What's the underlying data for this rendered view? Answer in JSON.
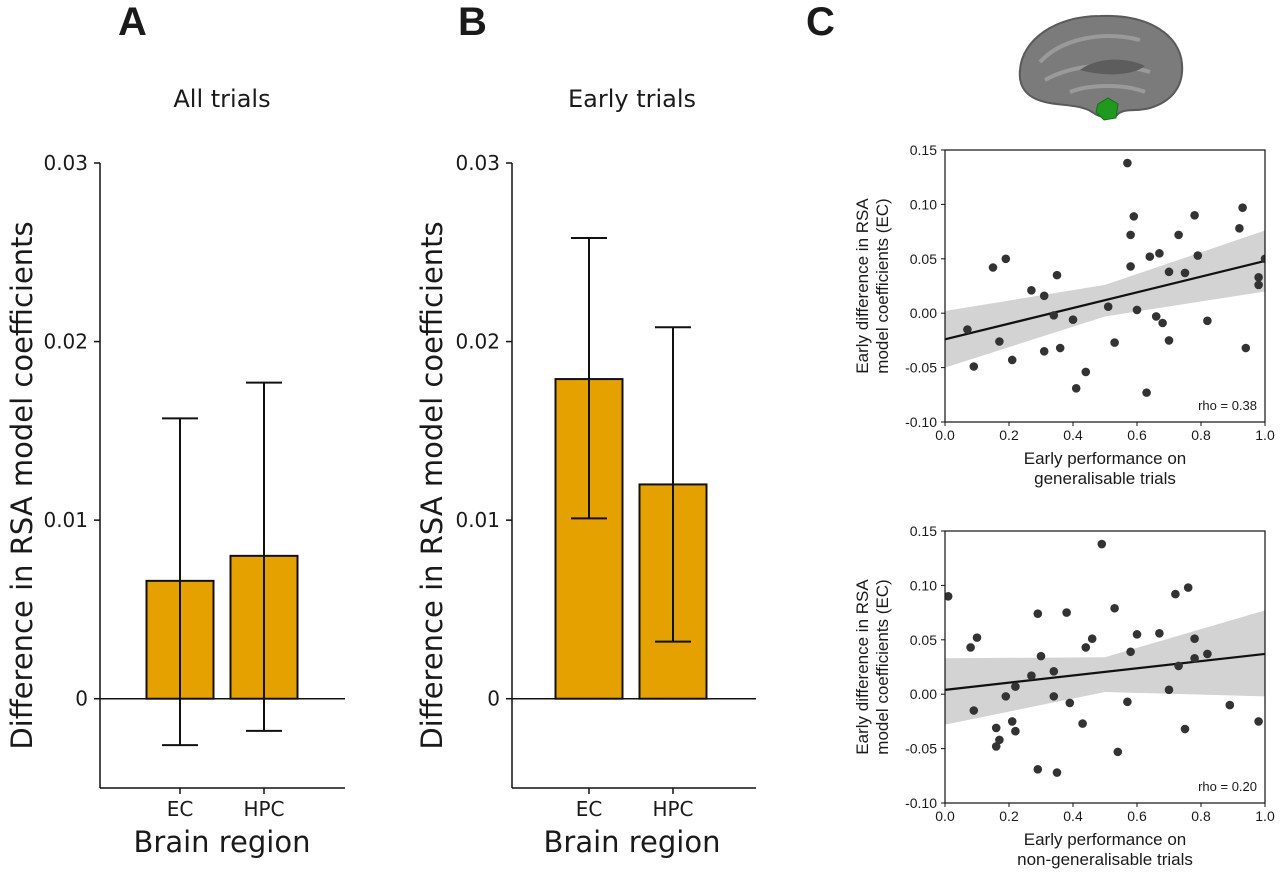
{
  "panel_letters": [
    "A",
    "B",
    "C"
  ],
  "colors": {
    "bar_fill": "#E5A100",
    "point": "#333333",
    "ci_band": "#d3d3d3",
    "axis": "#111111",
    "brain_gray": "#7a7a7a",
    "brain_green": "#1f9a1f"
  },
  "icons": {
    "brain": "medial-brain-surface-icon"
  },
  "chart_data": [
    {
      "type": "bar",
      "panel": "A",
      "title": "All trials",
      "xlabel": "Brain region",
      "ylabel": "Difference in RSA model coefficients",
      "categories": [
        "EC",
        "HPC"
      ],
      "values": [
        0.0066,
        0.008
      ],
      "error_low": [
        -0.0026,
        -0.0018
      ],
      "error_high": [
        0.0157,
        0.0177
      ],
      "ylim": [
        -0.005,
        0.03
      ],
      "yticks": [
        0,
        0.01,
        0.02,
        0.03
      ],
      "ytick_labels": [
        "0",
        "0.01",
        "0.02",
        "0.03"
      ],
      "grid": false
    },
    {
      "type": "bar",
      "panel": "B",
      "title": "Early trials",
      "xlabel": "Brain region",
      "ylabel": "Difference in RSA model coefficients",
      "categories": [
        "EC",
        "HPC"
      ],
      "values": [
        0.0179,
        0.012
      ],
      "error_low": [
        0.0101,
        0.0032
      ],
      "error_high": [
        0.0258,
        0.0208
      ],
      "ylim": [
        -0.005,
        0.03
      ],
      "yticks": [
        0,
        0.01,
        0.02,
        0.03
      ],
      "ytick_labels": [
        "0",
        "0.01",
        "0.02",
        "0.03"
      ],
      "grid": false
    },
    {
      "type": "scatter",
      "panel": "C",
      "xlabel": [
        "Early performance on",
        "generalisable trials"
      ],
      "ylabel": [
        "Early difference in RSA",
        "model coefficients (EC)"
      ],
      "annotation": "rho = 0.38",
      "xlim": [
        0.0,
        1.0
      ],
      "ylim": [
        -0.1,
        0.15
      ],
      "xticks": [
        "0.0",
        "0.2",
        "0.4",
        "0.6",
        "0.8",
        "1.0"
      ],
      "yticks": [
        "0.15",
        "0.10",
        "0.05",
        "0.00",
        "-0.05",
        "-0.10"
      ],
      "fit_line": {
        "x": [
          0.0,
          1.0
        ],
        "y": [
          -0.024,
          0.048
        ]
      },
      "ci_band": {
        "x": [
          0.0,
          0.5,
          1.0
        ],
        "upper": [
          0.002,
          0.026,
          0.076
        ],
        "lower": [
          -0.05,
          -0.003,
          0.02
        ]
      },
      "points": [
        [
          0.07,
          -0.015
        ],
        [
          0.09,
          -0.049
        ],
        [
          0.15,
          0.042
        ],
        [
          0.17,
          -0.026
        ],
        [
          0.19,
          0.05
        ],
        [
          0.21,
          -0.043
        ],
        [
          0.27,
          0.021
        ],
        [
          0.31,
          0.016
        ],
        [
          0.31,
          -0.035
        ],
        [
          0.34,
          -0.002
        ],
        [
          0.35,
          0.035
        ],
        [
          0.36,
          -0.032
        ],
        [
          0.4,
          -0.006
        ],
        [
          0.41,
          -0.069
        ],
        [
          0.44,
          -0.054
        ],
        [
          0.51,
          0.006
        ],
        [
          0.53,
          -0.027
        ],
        [
          0.57,
          0.138
        ],
        [
          0.58,
          0.043
        ],
        [
          0.58,
          0.072
        ],
        [
          0.59,
          0.089
        ],
        [
          0.6,
          0.003
        ],
        [
          0.63,
          -0.073
        ],
        [
          0.64,
          0.052
        ],
        [
          0.66,
          -0.003
        ],
        [
          0.67,
          0.055
        ],
        [
          0.68,
          -0.009
        ],
        [
          0.7,
          0.038
        ],
        [
          0.7,
          -0.025
        ],
        [
          0.73,
          0.072
        ],
        [
          0.75,
          0.037
        ],
        [
          0.78,
          0.09
        ],
        [
          0.79,
          0.053
        ],
        [
          0.82,
          -0.007
        ],
        [
          0.92,
          0.078
        ],
        [
          0.93,
          0.097
        ],
        [
          0.94,
          -0.032
        ],
        [
          0.98,
          0.033
        ],
        [
          0.98,
          0.026
        ],
        [
          1.0,
          0.05
        ]
      ]
    },
    {
      "type": "scatter",
      "panel": "C",
      "xlabel": [
        "Early performance on",
        "non-generalisable trials"
      ],
      "ylabel": [
        "Early difference in RSA",
        "model coefficients (EC)"
      ],
      "annotation": "rho = 0.20",
      "xlim": [
        0.0,
        1.0
      ],
      "ylim": [
        -0.1,
        0.15
      ],
      "xticks": [
        "0.0",
        "0.2",
        "0.4",
        "0.6",
        "0.8",
        "1.0"
      ],
      "yticks": [
        "0.15",
        "0.10",
        "0.05",
        "0.00",
        "-0.05",
        "-0.10"
      ],
      "fit_line": {
        "x": [
          0.0,
          1.0
        ],
        "y": [
          0.004,
          0.037
        ]
      },
      "ci_band": {
        "x": [
          0.0,
          0.5,
          1.0
        ],
        "upper": [
          0.033,
          0.034,
          0.077
        ],
        "lower": [
          -0.028,
          0.002,
          -0.002
        ]
      },
      "points": [
        [
          0.01,
          0.09
        ],
        [
          0.08,
          0.043
        ],
        [
          0.09,
          -0.015
        ],
        [
          0.1,
          0.052
        ],
        [
          0.16,
          -0.048
        ],
        [
          0.16,
          -0.031
        ],
        [
          0.17,
          -0.042
        ],
        [
          0.19,
          -0.002
        ],
        [
          0.21,
          -0.025
        ],
        [
          0.22,
          0.007
        ],
        [
          0.22,
          -0.034
        ],
        [
          0.27,
          0.017
        ],
        [
          0.29,
          -0.069
        ],
        [
          0.29,
          0.074
        ],
        [
          0.3,
          0.035
        ],
        [
          0.34,
          0.021
        ],
        [
          0.34,
          -0.002
        ],
        [
          0.35,
          -0.072
        ],
        [
          0.38,
          0.075
        ],
        [
          0.39,
          -0.008
        ],
        [
          0.43,
          -0.027
        ],
        [
          0.44,
          0.043
        ],
        [
          0.46,
          0.051
        ],
        [
          0.49,
          0.138
        ],
        [
          0.53,
          0.079
        ],
        [
          0.54,
          -0.053
        ],
        [
          0.57,
          -0.007
        ],
        [
          0.58,
          0.039
        ],
        [
          0.6,
          0.055
        ],
        [
          0.67,
          0.056
        ],
        [
          0.7,
          0.004
        ],
        [
          0.72,
          0.092
        ],
        [
          0.73,
          0.026
        ],
        [
          0.75,
          -0.032
        ],
        [
          0.76,
          0.098
        ],
        [
          0.78,
          0.051
        ],
        [
          0.78,
          0.033
        ],
        [
          0.82,
          0.037
        ],
        [
          0.89,
          -0.01
        ],
        [
          0.98,
          -0.025
        ]
      ]
    }
  ]
}
